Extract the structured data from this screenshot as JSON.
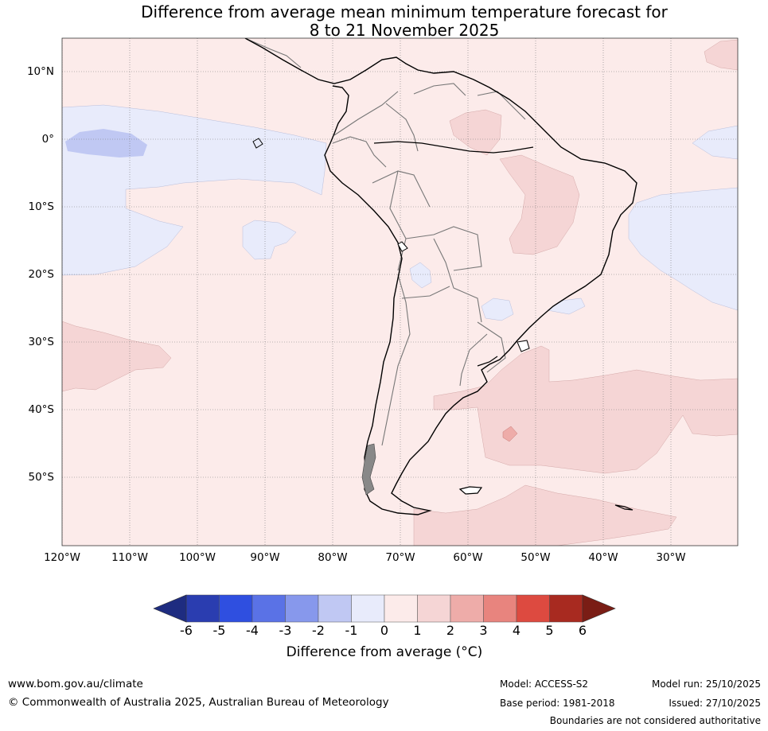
{
  "title": {
    "line1": "Difference from average mean minimum temperature forecast for",
    "line2": "8 to 21 November 2025"
  },
  "lat_labels": [
    "10°N",
    "0°",
    "10°S",
    "20°S",
    "30°S",
    "40°S",
    "50°S"
  ],
  "lon_labels": [
    "120°W",
    "110°W",
    "100°W",
    "90°W",
    "80°W",
    "70°W",
    "60°W",
    "50°W",
    "40°W",
    "30°W"
  ],
  "colorbar": {
    "ticks": [
      "-6",
      "-5",
      "-4",
      "-3",
      "-2",
      "-1",
      "0",
      "1",
      "2",
      "3",
      "4",
      "5",
      "6"
    ],
    "colors": [
      "#1e2c80",
      "#2a3db0",
      "#2f4fe0",
      "#5a72e6",
      "#8798ec",
      "#c0c8f3",
      "#e8ebfb",
      "#fcebea",
      "#f5d5d5",
      "#eeaca9",
      "#e8847e",
      "#dd4a40",
      "#a82a20",
      "#7a1d15"
    ],
    "label": "Difference from average (°C)"
  },
  "footer": {
    "website": "www.bom.gov.au/climate",
    "copyright": "© Commonwealth of Australia 2025, Australian Bureau of Meteorology",
    "model": "Model: ACCESS-S2",
    "base_period": "Base period: 1981-2018",
    "model_run": "Model run: 25/10/2025",
    "issued": "Issued: 27/10/2025",
    "disclaimer": "Boundaries are not considered authoritative"
  }
}
